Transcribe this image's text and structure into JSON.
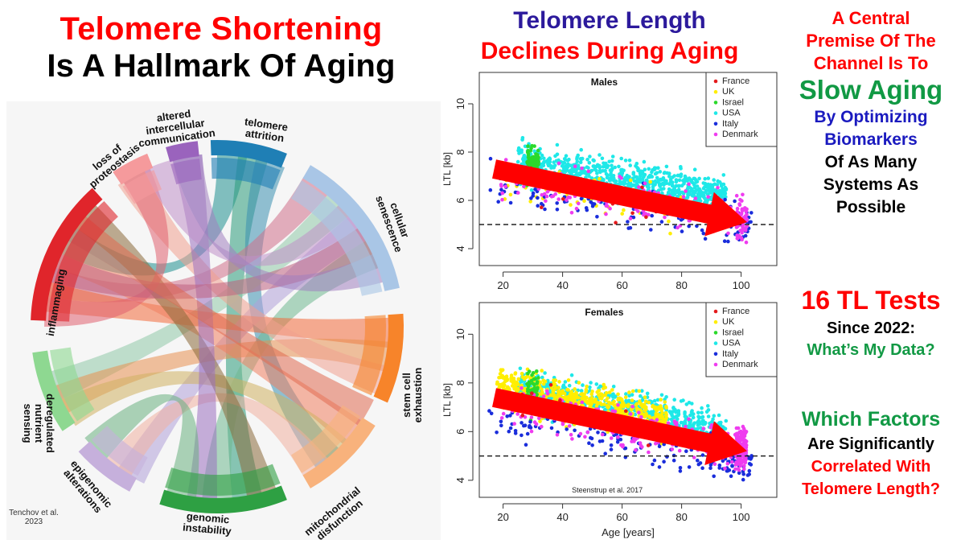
{
  "left_panel": {
    "title_line1": "Telomere Shortening",
    "title_line2": "Is A Hallmark Of Aging",
    "chord_diagram": {
      "segments": [
        {
          "label_lines": [
            "telomere",
            "attrition"
          ],
          "color": "#1f7fb5"
        },
        {
          "label_lines": [
            "cellular",
            "senescence"
          ],
          "color": "#a9c6e6"
        },
        {
          "label_lines": [
            "stem cell",
            "exhaustion"
          ],
          "color": "#f7842a"
        },
        {
          "label_lines": [
            "mitochondrial",
            "disfunction"
          ],
          "color": "#f8b27c"
        },
        {
          "label_lines": [
            "genomic",
            "instability"
          ],
          "color": "#2ea043"
        },
        {
          "label_lines": [
            "epigenomic",
            "alterations"
          ],
          "color": "#c6b0dc"
        },
        {
          "label_lines": [
            "deregulated",
            "nutrient",
            "sensing"
          ],
          "color": "#8ed891"
        },
        {
          "label_lines": [
            "inflammaging"
          ],
          "color": "#e0252b"
        },
        {
          "label_lines": [
            "loss of",
            "proteostasis"
          ],
          "color": "#f59a9c"
        },
        {
          "label_lines": [
            "altered",
            "intercellular",
            "communication"
          ],
          "color": "#9a63bd"
        }
      ],
      "credit_line1": "Tenchov et al.",
      "credit_line2": "2023"
    }
  },
  "middle_panel": {
    "title_line1": "Telomere Length",
    "title_line2": "Declines During Aging",
    "citation": "Steenstrup et al. 2017"
  },
  "chart_data": [
    {
      "type": "scatter",
      "title": "Males",
      "xlabel": "",
      "ylabel": "LTL [kb]",
      "xlim": [
        12,
        112
      ],
      "ylim": [
        3.3,
        11.3
      ],
      "x_ticks": [
        "20",
        "40",
        "60",
        "80",
        "100"
      ],
      "y_ticks": [
        "4",
        "6",
        "8",
        "10"
      ],
      "reference_line_y": 5,
      "trend_arrow": {
        "from": [
          17,
          7.3
        ],
        "to": [
          102,
          5.1
        ]
      },
      "legend": [
        "France",
        "UK",
        "Israel",
        "USA",
        "Italy",
        "Denmark"
      ],
      "legend_position": "top-right",
      "series": [
        {
          "name": "France",
          "color": "#e41a1c",
          "x_range": [
            20,
            80
          ],
          "y_center_at_20": 7.0,
          "slope_per_year": -0.025,
          "count": 20
        },
        {
          "name": "UK",
          "color": "#ffee00",
          "x_range": [
            20,
            80
          ],
          "y_center_at_20": 6.8,
          "slope_per_year": -0.02,
          "count": 80
        },
        {
          "name": "Israel",
          "color": "#2bd92b",
          "x_range": [
            28,
            32
          ],
          "y_center_at_20": 7.4,
          "slope_per_year": 0,
          "count": 120
        },
        {
          "name": "USA",
          "color": "#1ee8e8",
          "x_range": [
            25,
            95
          ],
          "y_center_at_20": 7.6,
          "slope_per_year": -0.02,
          "count": 900
        },
        {
          "name": "Italy",
          "color": "#1a2ddb",
          "x_range": [
            15,
            100
          ],
          "y_center_at_20": 6.6,
          "slope_per_year": -0.02,
          "count": 160
        },
        {
          "name": "Denmark",
          "color": "#ef3cef",
          "x_range": [
            19,
            102
          ],
          "y_center_at_20": 7.0,
          "slope_per_year": -0.022,
          "count": 220
        }
      ]
    },
    {
      "type": "scatter",
      "title": "Females",
      "xlabel": "Age [years]",
      "ylabel": "LTL [kb]",
      "xlim": [
        12,
        112
      ],
      "ylim": [
        3.3,
        11.3
      ],
      "x_ticks": [
        "20",
        "40",
        "60",
        "80",
        "100"
      ],
      "y_ticks": [
        "4",
        "6",
        "8",
        "10"
      ],
      "reference_line_y": 5,
      "trend_arrow": {
        "from": [
          17,
          7.4
        ],
        "to": [
          102,
          5.2
        ]
      },
      "legend": [
        "France",
        "UK",
        "Israel",
        "USA",
        "Italy",
        "Denmark"
      ],
      "legend_position": "top-right",
      "series": [
        {
          "name": "France",
          "color": "#e41a1c",
          "x_range": [
            20,
            80
          ],
          "y_center_at_20": 7.4,
          "slope_per_year": -0.02,
          "count": 15
        },
        {
          "name": "UK",
          "color": "#ffee00",
          "x_range": [
            18,
            75
          ],
          "y_center_at_20": 7.8,
          "slope_per_year": -0.025,
          "count": 700
        },
        {
          "name": "Israel",
          "color": "#2bd92b",
          "x_range": [
            28,
            32
          ],
          "y_center_at_20": 7.6,
          "slope_per_year": 0,
          "count": 60
        },
        {
          "name": "USA",
          "color": "#1ee8e8",
          "x_range": [
            25,
            95
          ],
          "y_center_at_20": 7.9,
          "slope_per_year": -0.025,
          "count": 700
        },
        {
          "name": "Italy",
          "color": "#1a2ddb",
          "x_range": [
            15,
            104
          ],
          "y_center_at_20": 6.5,
          "slope_per_year": -0.022,
          "count": 160
        },
        {
          "name": "Denmark",
          "color": "#ef3cef",
          "x_range": [
            19,
            102
          ],
          "y_center_at_20": 7.2,
          "slope_per_year": -0.024,
          "count": 380
        }
      ]
    }
  ],
  "right_panel": {
    "lines": [
      {
        "text": "A Central",
        "color": "#ff0000"
      },
      {
        "text": "Premise Of The",
        "color": "#ff0000"
      },
      {
        "text": "Channel Is To",
        "color": "#ff0000"
      },
      {
        "text": "Slow Aging",
        "color": "#119944"
      },
      {
        "text": "By Optimizing",
        "color": "#1a1abf"
      },
      {
        "text": "Biomarkers",
        "color": "#1a1abf"
      },
      {
        "text": "Of As Many",
        "color": "#000000"
      },
      {
        "text": "Systems As",
        "color": "#000000"
      },
      {
        "text": "Possible",
        "color": "#000000"
      },
      {
        "text": "16 TL Tests",
        "color": "#ff0000"
      },
      {
        "text": "Since 2022:",
        "color": "#000000"
      },
      {
        "text": "What’s My Data?",
        "color": "#119944"
      },
      {
        "text": "Which Factors",
        "color": "#119944"
      },
      {
        "text": "Are Significantly",
        "color": "#000000"
      },
      {
        "text": "Correlated With",
        "color": "#ff0000"
      },
      {
        "text": "Telomere Length?",
        "color": "#ff0000"
      }
    ]
  }
}
